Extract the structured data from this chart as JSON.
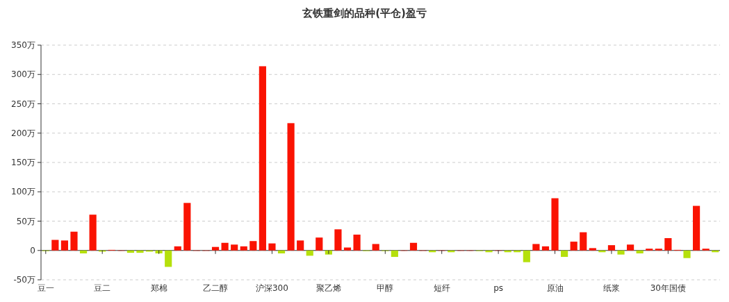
{
  "chart_data": {
    "type": "bar",
    "title": "玄铁重剑的品种(平仓)盈亏",
    "categories": [
      "豆一",
      null,
      null,
      null,
      null,
      null,
      "豆二",
      null,
      null,
      null,
      null,
      null,
      "郑棉",
      null,
      null,
      null,
      null,
      null,
      "乙二醇",
      null,
      null,
      null,
      null,
      null,
      "沪深300",
      null,
      null,
      null,
      null,
      null,
      "聚乙烯",
      null,
      null,
      null,
      null,
      null,
      "甲醇",
      null,
      null,
      null,
      null,
      null,
      "短纤",
      null,
      null,
      null,
      null,
      null,
      "ps",
      null,
      null,
      null,
      null,
      null,
      "原油",
      null,
      null,
      null,
      null,
      null,
      "纸浆",
      null,
      null,
      null,
      null,
      null,
      "30年国债",
      null,
      null,
      null,
      null,
      null
    ],
    "values": [
      -1,
      18,
      17,
      32,
      -5,
      61,
      -2,
      1,
      0,
      -4,
      -4,
      -2,
      -5,
      -28,
      7,
      81,
      0,
      0,
      6,
      13,
      10,
      7,
      16,
      314,
      12,
      -5,
      217,
      17,
      -9,
      22,
      -7,
      36,
      5,
      27,
      -1,
      11,
      -1,
      -11,
      0,
      13,
      0,
      -3,
      0,
      -3,
      0,
      0,
      -1,
      -3,
      0,
      -3,
      -3,
      -20,
      11,
      7,
      89,
      -11,
      15,
      31,
      4,
      -3,
      9,
      -7,
      10,
      -5,
      3,
      3,
      21,
      1,
      -13,
      76,
      3,
      -3
    ],
    "colors": [
      "#b5e00c",
      "#fa1302",
      "#fa1302",
      "#fa1302",
      "#b5e00c",
      "#fa1302",
      "#b5e00c",
      "#fa1302",
      "#fa1302",
      "#b5e00c",
      "#b5e00c",
      "#b5e00c",
      "#b5e00c",
      "#b5e00c",
      "#fa1302",
      "#fa1302",
      "#fa1302",
      "#fa1302",
      "#fa1302",
      "#fa1302",
      "#fa1302",
      "#fa1302",
      "#fa1302",
      "#fa1302",
      "#fa1302",
      "#b5e00c",
      "#fa1302",
      "#fa1302",
      "#b5e00c",
      "#fa1302",
      "#b5e00c",
      "#fa1302",
      "#fa1302",
      "#fa1302",
      "#b5e00c",
      "#fa1302",
      "#b5e00c",
      "#b5e00c",
      "#fa1302",
      "#fa1302",
      "#fa1302",
      "#b5e00c",
      "#fa1302",
      "#b5e00c",
      "#fa1302",
      "#fa1302",
      "#b5e00c",
      "#b5e00c",
      "#fa1302",
      "#b5e00c",
      "#b5e00c",
      "#b5e00c",
      "#fa1302",
      "#fa1302",
      "#fa1302",
      "#b5e00c",
      "#fa1302",
      "#fa1302",
      "#fa1302",
      "#b5e00c",
      "#fa1302",
      "#b5e00c",
      "#fa1302",
      "#b5e00c",
      "#fa1302",
      "#fa1302",
      "#fa1302",
      "#fa1302",
      "#b5e00c",
      "#fa1302",
      "#fa1302",
      "#b5e00c"
    ],
    "ylim": [
      -50,
      350
    ],
    "yticks": [
      {
        "value": -50,
        "label": "-50万"
      },
      0,
      {
        "value": 50,
        "label": "50万"
      },
      {
        "value": 100,
        "label": "100万"
      },
      {
        "value": 150,
        "label": "150万"
      },
      {
        "value": 200,
        "label": "200万"
      },
      {
        "value": 250,
        "label": "250万"
      },
      {
        "value": 300,
        "label": "300万"
      },
      {
        "value": 350,
        "label": "350万"
      }
    ],
    "grid": "y"
  }
}
